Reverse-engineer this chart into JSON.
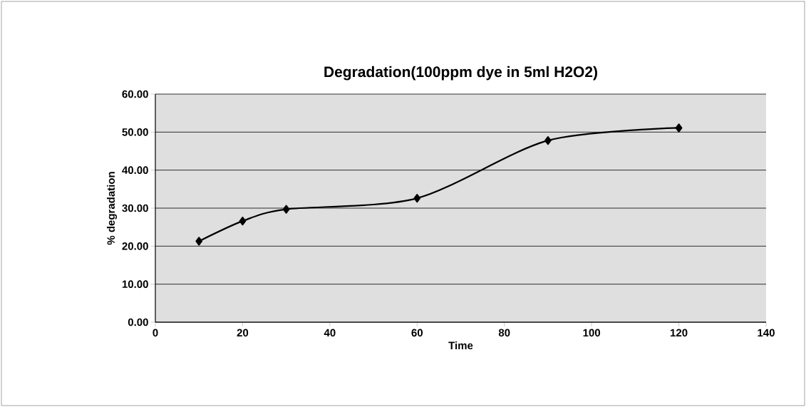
{
  "chart_data": {
    "type": "line",
    "title": "Degradation(100ppm dye in 5ml H2O2)",
    "xlabel": "Time",
    "ylabel": "% degradation",
    "x": [
      10,
      20,
      30,
      60,
      90,
      120
    ],
    "series": [
      {
        "color": "#000000",
        "values": [
          21.3,
          26.6,
          29.7,
          32.6,
          47.8,
          51.1
        ]
      }
    ],
    "xlim": [
      0,
      140
    ],
    "xticks": [
      0,
      20,
      40,
      60,
      80,
      100,
      120,
      140
    ],
    "ylim": [
      0,
      60
    ],
    "yticks": [
      {
        "value": 0,
        "label": "0.00"
      },
      {
        "value": 10,
        "label": "10.00"
      },
      {
        "value": 20,
        "label": "20.00"
      },
      {
        "value": 30,
        "label": "30.00"
      },
      {
        "value": 40,
        "label": "40.00"
      },
      {
        "value": 50,
        "label": "50.00"
      },
      {
        "value": 60,
        "label": "60.00"
      }
    ],
    "grid": "y",
    "marker": "diamond",
    "legend": false
  }
}
